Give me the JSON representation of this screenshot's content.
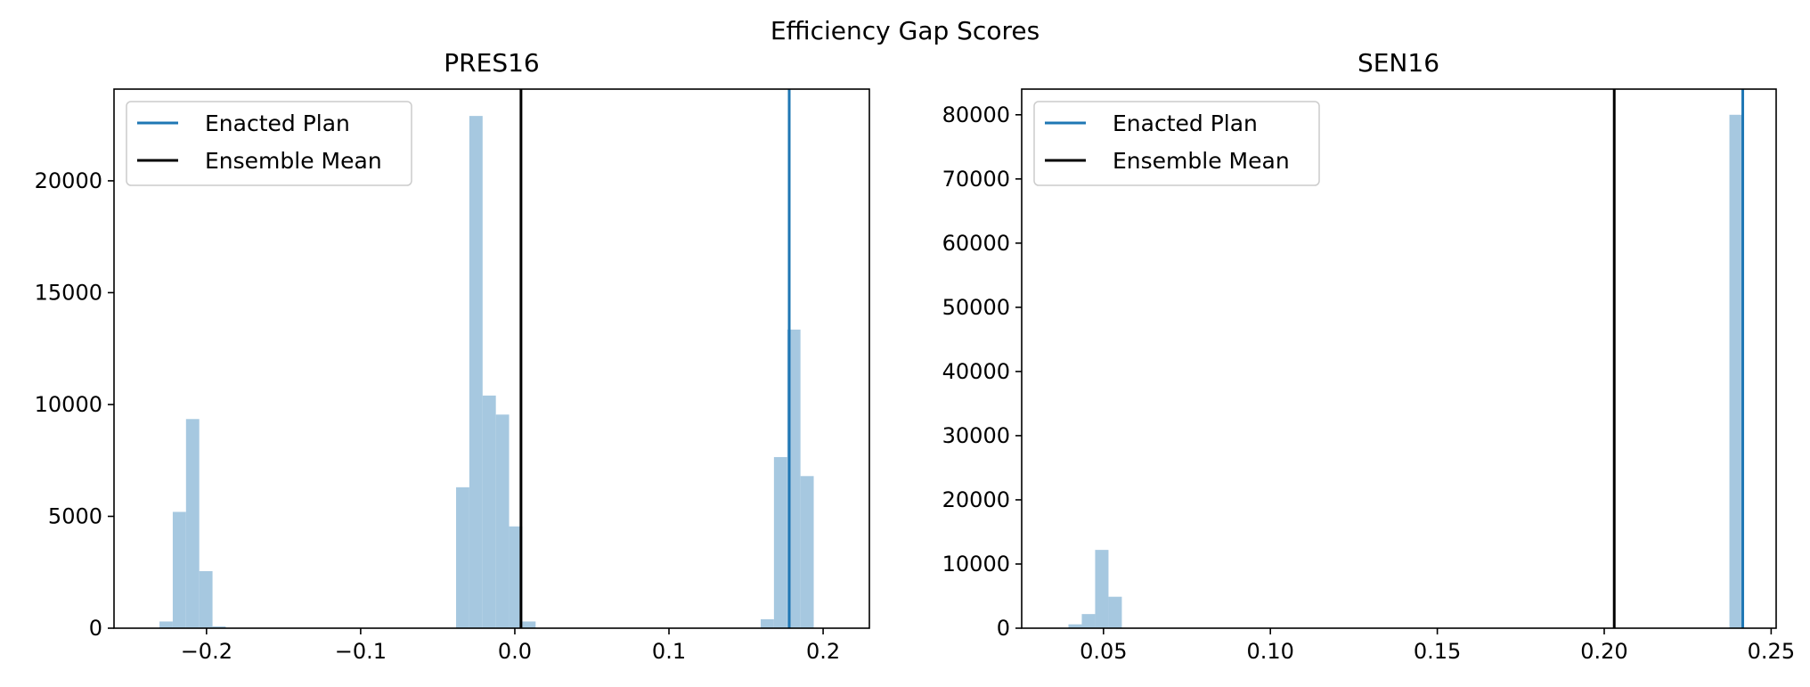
{
  "figure": {
    "suptitle": "Efficiency Gap Scores"
  },
  "colors": {
    "enacted": "#1f77b4",
    "mean": "#000000",
    "hist": "#a6c8e0",
    "axis": "#000000"
  },
  "chart_data": [
    {
      "type": "histogram",
      "title": "PRES16",
      "xlim": [
        -0.26,
        0.23
      ],
      "ylim": [
        0,
        24100
      ],
      "x_ticks": [
        -0.2,
        -0.1,
        0.0,
        0.1,
        0.2
      ],
      "x_tick_labels": [
        "−0.2",
        "−0.1",
        "0.0",
        "0.1",
        "0.2"
      ],
      "y_ticks": [
        0,
        5000,
        10000,
        15000,
        20000
      ],
      "y_tick_labels": [
        "0",
        "5000",
        "10000",
        "15000",
        "20000"
      ],
      "bins": [
        {
          "x0": -0.2305,
          "x1": -0.2219,
          "count": 300
        },
        {
          "x0": -0.2219,
          "x1": -0.2133,
          "count": 5200
        },
        {
          "x0": -0.2133,
          "x1": -0.2047,
          "count": 9350
        },
        {
          "x0": -0.2047,
          "x1": -0.1961,
          "count": 2550
        },
        {
          "x0": -0.1961,
          "x1": -0.1875,
          "count": 80
        },
        {
          "x0": -0.0381,
          "x1": -0.0295,
          "count": 6300
        },
        {
          "x0": -0.0295,
          "x1": -0.0209,
          "count": 22900
        },
        {
          "x0": -0.0209,
          "x1": -0.0123,
          "count": 10400
        },
        {
          "x0": -0.0123,
          "x1": -0.0037,
          "count": 9550
        },
        {
          "x0": -0.0037,
          "x1": 0.0049,
          "count": 4550
        },
        {
          "x0": 0.0049,
          "x1": 0.0135,
          "count": 300
        },
        {
          "x0": 0.1595,
          "x1": 0.1681,
          "count": 400
        },
        {
          "x0": 0.1681,
          "x1": 0.1767,
          "count": 7650
        },
        {
          "x0": 0.1767,
          "x1": 0.1853,
          "count": 13350
        },
        {
          "x0": 0.1853,
          "x1": 0.1939,
          "count": 6800
        }
      ],
      "enacted_plan": 0.178,
      "ensemble_mean": 0.004,
      "legend": {
        "placement": "upper-left",
        "entries": [
          "Enacted Plan",
          "Ensemble Mean"
        ]
      }
    },
    {
      "type": "histogram",
      "title": "SEN16",
      "xlim": [
        0.0255,
        0.2515
      ],
      "ylim": [
        0,
        84000
      ],
      "x_ticks": [
        0.05,
        0.1,
        0.15,
        0.2,
        0.25
      ],
      "x_tick_labels": [
        "0.05",
        "0.10",
        "0.15",
        "0.20",
        "0.25"
      ],
      "y_ticks": [
        0,
        10000,
        20000,
        30000,
        40000,
        50000,
        60000,
        70000,
        80000
      ],
      "y_tick_labels": [
        "0",
        "10000",
        "20000",
        "30000",
        "40000",
        "50000",
        "60000",
        "70000",
        "80000"
      ],
      "bins": [
        {
          "x0": 0.0395,
          "x1": 0.0435,
          "count": 600
        },
        {
          "x0": 0.0435,
          "x1": 0.0475,
          "count": 2200
        },
        {
          "x0": 0.0475,
          "x1": 0.0515,
          "count": 12200
        },
        {
          "x0": 0.0515,
          "x1": 0.0555,
          "count": 4900
        },
        {
          "x0": 0.2375,
          "x1": 0.2415,
          "count": 80000
        }
      ],
      "enacted_plan": 0.2415,
      "ensemble_mean": 0.203,
      "legend": {
        "placement": "upper-left",
        "entries": [
          "Enacted Plan",
          "Ensemble Mean"
        ]
      }
    }
  ]
}
